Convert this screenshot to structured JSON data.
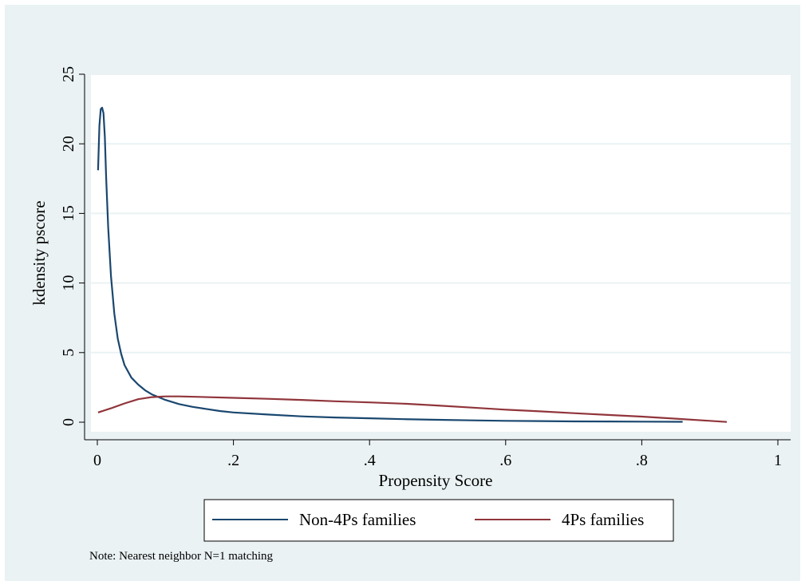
{
  "chart_data": {
    "type": "line",
    "xlabel": "Propensity Score",
    "ylabel": "kdensity pscore",
    "xlim": [
      0,
      1
    ],
    "ylim": [
      0,
      25
    ],
    "xticks": [
      {
        "value": 0,
        "label": "0"
      },
      {
        "value": 0.2,
        "label": ".2"
      },
      {
        "value": 0.4,
        "label": ".4"
      },
      {
        "value": 0.6,
        "label": ".6"
      },
      {
        "value": 0.8,
        "label": ".8"
      },
      {
        "value": 1,
        "label": "1"
      }
    ],
    "yticks": [
      {
        "value": 0,
        "label": "0"
      },
      {
        "value": 5,
        "label": "5"
      },
      {
        "value": 10,
        "label": "10"
      },
      {
        "value": 15,
        "label": "15"
      },
      {
        "value": 20,
        "label": "20"
      },
      {
        "value": 25,
        "label": "25"
      }
    ],
    "grid": true,
    "legend_position": "bottom",
    "note": "Note: Nearest neighbor N=1 matching",
    "series": [
      {
        "name": "Non-4Ps families",
        "color": "#1a476f",
        "x": [
          0.001,
          0.003,
          0.005,
          0.007,
          0.009,
          0.011,
          0.013,
          0.016,
          0.02,
          0.025,
          0.03,
          0.035,
          0.04,
          0.05,
          0.06,
          0.07,
          0.08,
          0.09,
          0.1,
          0.12,
          0.14,
          0.16,
          0.18,
          0.2,
          0.25,
          0.3,
          0.35,
          0.4,
          0.45,
          0.5,
          0.55,
          0.6,
          0.65,
          0.7,
          0.75,
          0.8,
          0.86
        ],
        "y": [
          18.1,
          21.3,
          22.5,
          22.6,
          22.2,
          20.5,
          17.5,
          14.0,
          10.5,
          7.8,
          6.0,
          4.9,
          4.1,
          3.2,
          2.7,
          2.3,
          2.0,
          1.8,
          1.6,
          1.3,
          1.1,
          0.95,
          0.8,
          0.7,
          0.55,
          0.42,
          0.34,
          0.28,
          0.22,
          0.17,
          0.13,
          0.1,
          0.08,
          0.06,
          0.05,
          0.04,
          0.03
        ]
      },
      {
        "name": "4Ps families",
        "color": "#90353b",
        "x": [
          0.001,
          0.02,
          0.04,
          0.06,
          0.08,
          0.1,
          0.12,
          0.15,
          0.2,
          0.25,
          0.3,
          0.35,
          0.4,
          0.45,
          0.5,
          0.55,
          0.6,
          0.65,
          0.7,
          0.75,
          0.8,
          0.85,
          0.9,
          0.925
        ],
        "y": [
          0.7,
          1.0,
          1.35,
          1.65,
          1.8,
          1.85,
          1.85,
          1.82,
          1.75,
          1.68,
          1.6,
          1.5,
          1.42,
          1.33,
          1.2,
          1.05,
          0.9,
          0.78,
          0.65,
          0.52,
          0.4,
          0.25,
          0.1,
          0.02
        ]
      }
    ]
  }
}
